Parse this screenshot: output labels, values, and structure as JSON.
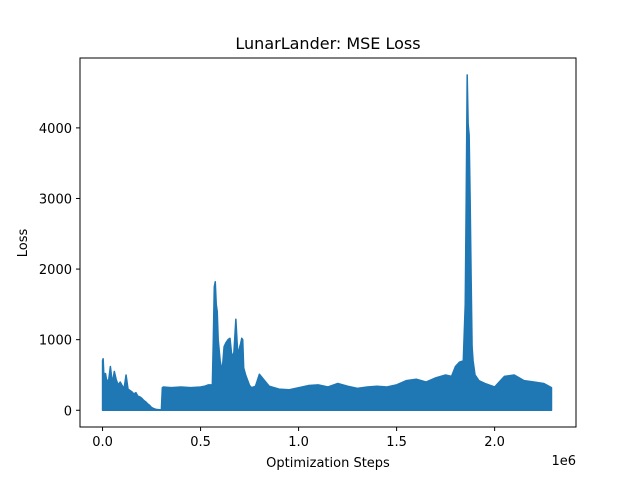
{
  "chart_data": {
    "type": "line",
    "title": "LunarLander: MSE Loss",
    "xlabel": "Optimization Steps",
    "ylabel": "Loss",
    "x_offset_label": "1e6",
    "xlim": [
      -0.115,
      2.415
    ],
    "ylim": [
      -237,
      4990
    ],
    "x_ticks": [
      0.0,
      0.5,
      1.0,
      1.5,
      2.0
    ],
    "x_tick_labels": [
      "0.0",
      "0.5",
      "1.0",
      "1.5",
      "2.0"
    ],
    "y_ticks": [
      0,
      1000,
      2000,
      3000,
      4000
    ],
    "y_tick_labels": [
      "0",
      "1000",
      "2000",
      "3000",
      "4000"
    ],
    "grid": false,
    "series": [
      {
        "color": "#1f77b4",
        "envelope_x": [
          0.0,
          0.003,
          0.006,
          0.01,
          0.015,
          0.02,
          0.03,
          0.04,
          0.05,
          0.06,
          0.07,
          0.08,
          0.09,
          0.1,
          0.11,
          0.12,
          0.13,
          0.14,
          0.15,
          0.16,
          0.17,
          0.18,
          0.19,
          0.2,
          0.21,
          0.22,
          0.23,
          0.24,
          0.25,
          0.26,
          0.27,
          0.28,
          0.29,
          0.3,
          0.305,
          0.31,
          0.35,
          0.4,
          0.45,
          0.5,
          0.52,
          0.54,
          0.56,
          0.565,
          0.57,
          0.575,
          0.58,
          0.585,
          0.59,
          0.6,
          0.61,
          0.62,
          0.63,
          0.64,
          0.65,
          0.66,
          0.67,
          0.68,
          0.69,
          0.7,
          0.705,
          0.71,
          0.715,
          0.72,
          0.73,
          0.75,
          0.76,
          0.78,
          0.8,
          0.85,
          0.9,
          0.95,
          1.0,
          1.05,
          1.1,
          1.15,
          1.2,
          1.25,
          1.3,
          1.35,
          1.4,
          1.45,
          1.5,
          1.55,
          1.6,
          1.65,
          1.7,
          1.75,
          1.78,
          1.8,
          1.82,
          1.84,
          1.85,
          1.855,
          1.86,
          1.865,
          1.87,
          1.875,
          1.88,
          1.885,
          1.89,
          1.9,
          1.92,
          1.95,
          2.0,
          2.05,
          2.1,
          2.15,
          2.2,
          2.25,
          2.29
        ],
        "envelope_y": [
          700,
          730,
          550,
          460,
          520,
          440,
          400,
          620,
          380,
          550,
          430,
          360,
          400,
          350,
          310,
          500,
          300,
          280,
          260,
          230,
          250,
          200,
          190,
          170,
          140,
          120,
          90,
          70,
          40,
          25,
          15,
          10,
          8,
          5,
          320,
          330,
          320,
          330,
          320,
          330,
          340,
          360,
          360,
          1000,
          1750,
          1820,
          1500,
          1400,
          1000,
          700,
          550,
          900,
          960,
          1000,
          1020,
          750,
          820,
          1290,
          780,
          900,
          950,
          1020,
          1000,
          600,
          500,
          350,
          320,
          340,
          510,
          340,
          300,
          290,
          320,
          350,
          360,
          330,
          380,
          340,
          310,
          330,
          340,
          330,
          360,
          420,
          440,
          400,
          460,
          500,
          480,
          620,
          680,
          700,
          1500,
          3000,
          4750,
          4050,
          3900,
          3000,
          1900,
          900,
          700,
          500,
          420,
          380,
          330,
          480,
          500,
          420,
          400,
          380,
          320
        ],
        "lower_y": [
          0,
          0,
          0,
          0,
          0,
          0,
          0,
          0,
          0,
          0,
          0,
          0,
          0,
          0,
          0,
          0,
          0,
          0,
          0,
          0,
          0,
          0,
          0,
          0,
          0,
          0,
          0,
          0,
          0,
          0,
          0,
          0,
          0,
          0,
          0,
          0,
          0,
          0,
          0,
          0,
          0,
          0,
          0,
          0,
          0,
          0,
          0,
          0,
          0,
          0,
          0,
          0,
          0,
          0,
          0,
          0,
          0,
          0,
          0,
          0,
          0,
          0,
          0,
          0,
          0,
          0,
          0,
          0,
          0,
          0,
          0,
          0,
          0,
          0,
          0,
          0,
          0,
          0,
          0,
          0,
          0,
          0,
          0,
          0,
          0,
          0,
          0,
          0,
          0,
          0,
          0,
          0,
          0,
          0,
          0,
          0,
          0,
          0,
          0,
          0,
          0,
          0,
          0,
          0,
          0,
          0,
          0,
          0,
          0,
          0,
          0
        ]
      }
    ]
  }
}
